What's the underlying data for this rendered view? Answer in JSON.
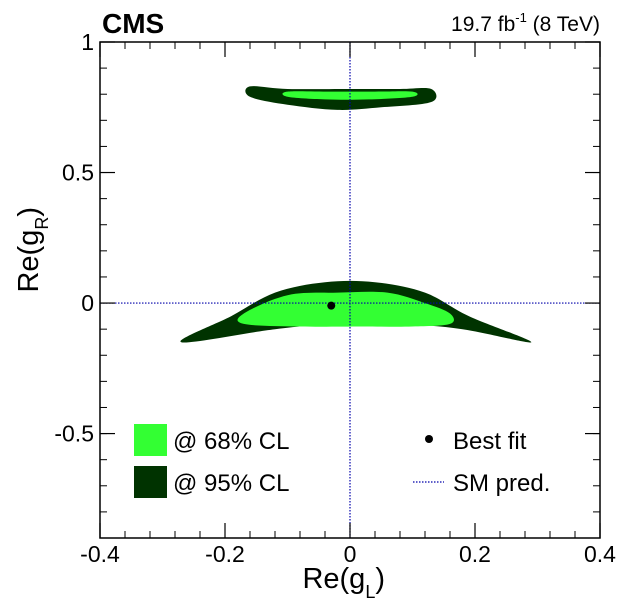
{
  "header": {
    "experiment": "CMS",
    "lumi_main": "19.7 fb",
    "lumi_exp": "-1",
    "lumi_tail": " (8 TeV)"
  },
  "chart_data": {
    "type": "contour",
    "xlabel_main": "Re(g",
    "xlabel_sub": "L",
    "xlabel_close": ")",
    "ylabel_main": "Re(g",
    "ylabel_sub": "R",
    "ylabel_close": ")",
    "xlim": [
      -0.4,
      0.4
    ],
    "ylim": [
      -0.9,
      1.0
    ],
    "xticks": [
      -0.4,
      -0.2,
      0,
      0.2,
      0.4
    ],
    "xtick_labels": [
      "-0.4",
      "-0.2",
      "0",
      "0.2",
      "0.4"
    ],
    "yticks": [
      -0.5,
      0,
      0.5,
      1
    ],
    "ytick_labels": [
      "-0.5",
      "0",
      "0.5",
      "1"
    ],
    "best_fit": {
      "x": -0.03,
      "y": -0.01
    },
    "sm_prediction": {
      "x": 0.0,
      "y": 0.0
    },
    "regions": [
      {
        "name": "@ 95% CL",
        "color": "#003300",
        "lower_band": {
          "top": [
            [
              -0.19,
              -0.05
            ],
            [
              -0.12,
              0.04
            ],
            [
              -0.04,
              0.08
            ],
            [
              0.04,
              0.08
            ],
            [
              0.12,
              0.04
            ],
            [
              0.19,
              -0.05
            ]
          ],
          "bottom": [
            [
              -0.27,
              -0.15
            ],
            [
              -0.12,
              -0.1
            ],
            [
              -0.02,
              -0.08
            ],
            [
              0.08,
              -0.08
            ],
            [
              0.18,
              -0.1
            ],
            [
              0.29,
              -0.15
            ]
          ]
        },
        "upper_band": {
          "top": [
            [
              -0.16,
              0.83
            ],
            [
              -0.1,
              0.82
            ],
            [
              0.0,
              0.82
            ],
            [
              0.08,
              0.82
            ],
            [
              0.13,
              0.82
            ]
          ],
          "bottom": [
            [
              -0.16,
              0.79
            ],
            [
              -0.1,
              0.76
            ],
            [
              -0.02,
              0.74
            ],
            [
              0.05,
              0.75
            ],
            [
              0.13,
              0.77
            ]
          ]
        }
      },
      {
        "name": "@ 68% CL",
        "color": "#33ff33",
        "lower_band": {
          "top": [
            [
              -0.17,
              -0.04
            ],
            [
              -0.1,
              0.03
            ],
            [
              -0.02,
              0.04
            ],
            [
              0.06,
              0.04
            ],
            [
              0.12,
              0.0
            ],
            [
              0.16,
              -0.04
            ]
          ],
          "bottom": [
            [
              -0.17,
              -0.08
            ],
            [
              -0.08,
              -0.09
            ],
            [
              0.02,
              -0.09
            ],
            [
              0.1,
              -0.09
            ],
            [
              0.16,
              -0.08
            ]
          ]
        },
        "upper_band": {
          "top": [
            [
              -0.1,
              0.81
            ],
            [
              -0.03,
              0.81
            ],
            [
              0.04,
              0.81
            ],
            [
              0.1,
              0.81
            ]
          ],
          "bottom": [
            [
              -0.1,
              0.79
            ],
            [
              -0.04,
              0.78
            ],
            [
              0.03,
              0.78
            ],
            [
              0.1,
              0.79
            ]
          ]
        }
      }
    ],
    "legend": {
      "cl68_label": "@ 68% CL",
      "cl68_color": "#33ff33",
      "cl95_label": "@ 95% CL",
      "cl95_color": "#003300",
      "bestfit_label": "Best fit",
      "sm_label": "SM pred.",
      "sm_color": "#0000aa"
    }
  }
}
